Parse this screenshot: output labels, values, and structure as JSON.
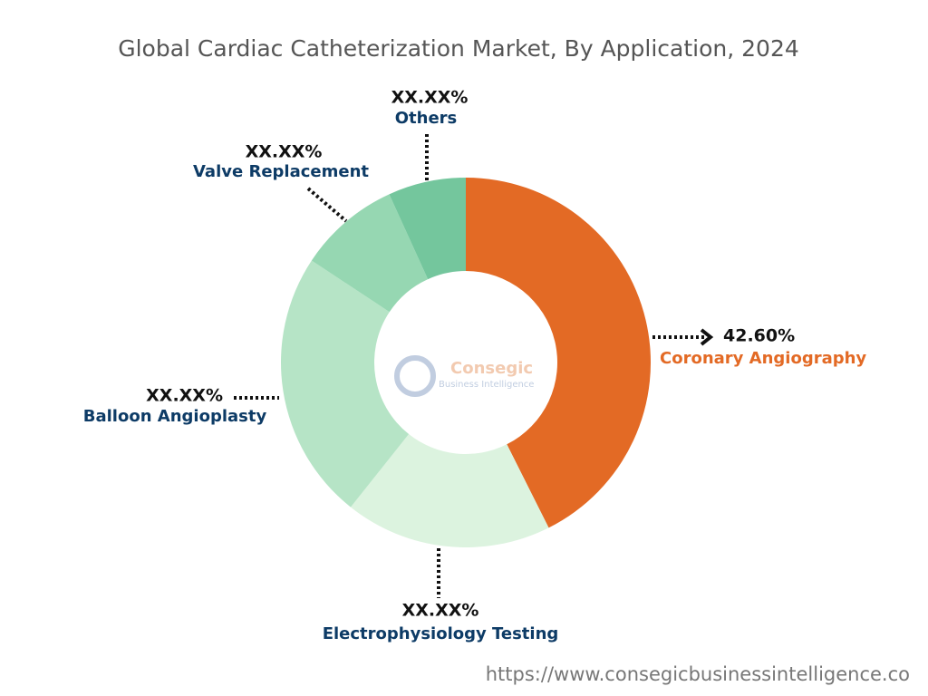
{
  "chart_data": {
    "type": "donut",
    "title": "Global Cardiac Catheterization Market, By Application, 2024",
    "categories": [
      "Coronary Angiography",
      "Electrophysiology Testing",
      "Balloon Angioplasty",
      "Valve Replacement",
      "Others"
    ],
    "values": [
      42.6,
      18.1,
      23.6,
      8.9,
      6.8
    ],
    "value_labels": [
      "42.60%",
      "XX.XX%",
      "XX.XX%",
      "XX.XX%",
      "XX.XX%"
    ],
    "colors": [
      "#e36a25",
      "#dcf3df",
      "#b6e4c6",
      "#96d7b2",
      "#74c69d"
    ],
    "logo": {
      "name": "Consegic",
      "tagline": "Business Intelligence"
    },
    "source": "https://www.consegicbusinessintelligence.co"
  }
}
